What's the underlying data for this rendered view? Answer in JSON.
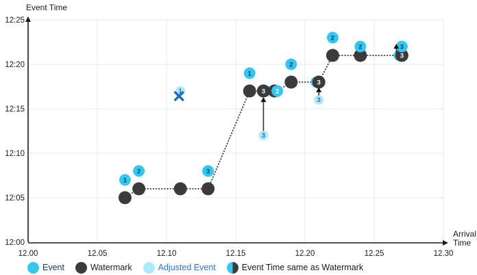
{
  "figure": {
    "y_axis_title": "Event Time",
    "x_axis_title_lines": [
      "Arrival",
      "Time"
    ]
  },
  "chart_data": {
    "type": "scatter",
    "title": "",
    "x_axis": {
      "label": "Arrival Time",
      "min": 12.0,
      "max": 12.3,
      "tick_labels": [
        "12.00",
        "12.05",
        "12.10",
        "12.15",
        "12.20",
        "12.25",
        "12.30"
      ]
    },
    "y_axis": {
      "label": "Event Time",
      "min_minutes": 0,
      "max_minutes": 25,
      "tick_labels": [
        "12:00",
        "12:05",
        "12:10",
        "12:15",
        "12:20",
        "12:25"
      ]
    },
    "grid": true,
    "legend_position": "bottom",
    "events": [
      {
        "label": "1",
        "arrival": 12.07,
        "minutes": 7,
        "time": "12:07"
      },
      {
        "label": "2",
        "arrival": 12.08,
        "minutes": 8,
        "time": "12:08"
      },
      {
        "label": "3",
        "arrival": 12.13,
        "minutes": 8,
        "time": "12:08"
      },
      {
        "label": "1",
        "arrival": 12.16,
        "minutes": 19,
        "time": "12:19"
      },
      {
        "label": "2",
        "arrival": 12.19,
        "minutes": 20,
        "time": "12:20"
      },
      {
        "label": "2",
        "arrival": 12.22,
        "minutes": 23,
        "time": "12:23"
      },
      {
        "label": "2",
        "arrival": 12.24,
        "minutes": 22,
        "time": "12:22"
      },
      {
        "label": "3",
        "arrival": 12.27,
        "minutes": 22,
        "time": "12:22"
      }
    ],
    "watermarks": [
      {
        "arrival": 12.07,
        "minutes": 5,
        "time": "12:05"
      },
      {
        "arrival": 12.08,
        "minutes": 6,
        "time": "12:06"
      },
      {
        "arrival": 12.11,
        "minutes": 6,
        "time": "12:06"
      },
      {
        "arrival": 12.13,
        "minutes": 6,
        "time": "12:06"
      },
      {
        "arrival": 12.16,
        "minutes": 17,
        "time": "12:17"
      },
      {
        "arrival": 12.19,
        "minutes": 18,
        "time": "12:18"
      },
      {
        "arrival": 12.22,
        "minutes": 21,
        "time": "12:21"
      },
      {
        "arrival": 12.24,
        "minutes": 21,
        "time": "12:21"
      }
    ],
    "same_as_watermark": [
      {
        "label": "3",
        "arrival": 12.17,
        "minutes": 17,
        "time": "12:17",
        "cyan_side": "right"
      },
      {
        "label": "2",
        "arrival": 12.18,
        "minutes": 17,
        "time": "12:17",
        "cyan_side": "front"
      },
      {
        "label": "3",
        "arrival": 12.21,
        "minutes": 18,
        "time": "12:18",
        "cyan_side": "left"
      },
      {
        "label": "3",
        "arrival": 12.27,
        "minutes": 21,
        "time": "12:21",
        "cyan_side": "left"
      }
    ],
    "adjusted_events": [
      {
        "label": "1",
        "arrival": 12.11,
        "minutes": 17,
        "time": "12:17",
        "dropped": true
      },
      {
        "label": "3",
        "arrival": 12.17,
        "minutes": 12,
        "time": "12:12",
        "dropped": false
      },
      {
        "label": "3",
        "arrival": 12.21,
        "minutes": 16,
        "time": "12:16",
        "dropped": false
      }
    ],
    "adjustment_arrows": [
      {
        "arrival": 12.17,
        "from_minutes": 12.5,
        "to_minutes": 16.3
      },
      {
        "arrival": 12.21,
        "from_minutes": 16.5,
        "to_minutes": 17.4
      },
      {
        "arrival": 12.266,
        "from_minutes": 21.2,
        "to_minutes": 22.3
      }
    ],
    "watermark_line": [
      [
        12.07,
        5
      ],
      [
        12.08,
        6
      ],
      [
        12.11,
        6
      ],
      [
        12.13,
        6
      ],
      [
        12.16,
        17
      ],
      [
        12.17,
        17
      ],
      [
        12.18,
        17
      ],
      [
        12.19,
        18
      ],
      [
        12.21,
        18
      ],
      [
        12.22,
        21
      ],
      [
        12.24,
        21
      ],
      [
        12.27,
        21
      ]
    ],
    "legend": [
      {
        "label": "Event",
        "swatch": "event",
        "text_color": "#12395F"
      },
      {
        "label": "Watermark",
        "swatch": "watermark",
        "text_color": "#1A1A1A"
      },
      {
        "label": "Adjusted Event",
        "swatch": "adjusted",
        "text_color": "#2E74C9"
      },
      {
        "label": "Event Time same as Watermark",
        "swatch": "same",
        "text_color": "#1A1A1A"
      }
    ],
    "colors": {
      "event": "#35C7EF",
      "watermark": "#3B3B3B",
      "adjusted": "#B0E9F9",
      "number_on_event": "#0D3C62",
      "number_on_adjusted": "#1C6BBF",
      "number_on_dark": "#FFFFFF",
      "x_mark": "#1C6BBF",
      "axis": "#1A1A1A",
      "gridline": "#E8E8E8",
      "dotted_line": "#4B4B4B",
      "arrow": "#3B3B3B"
    }
  }
}
